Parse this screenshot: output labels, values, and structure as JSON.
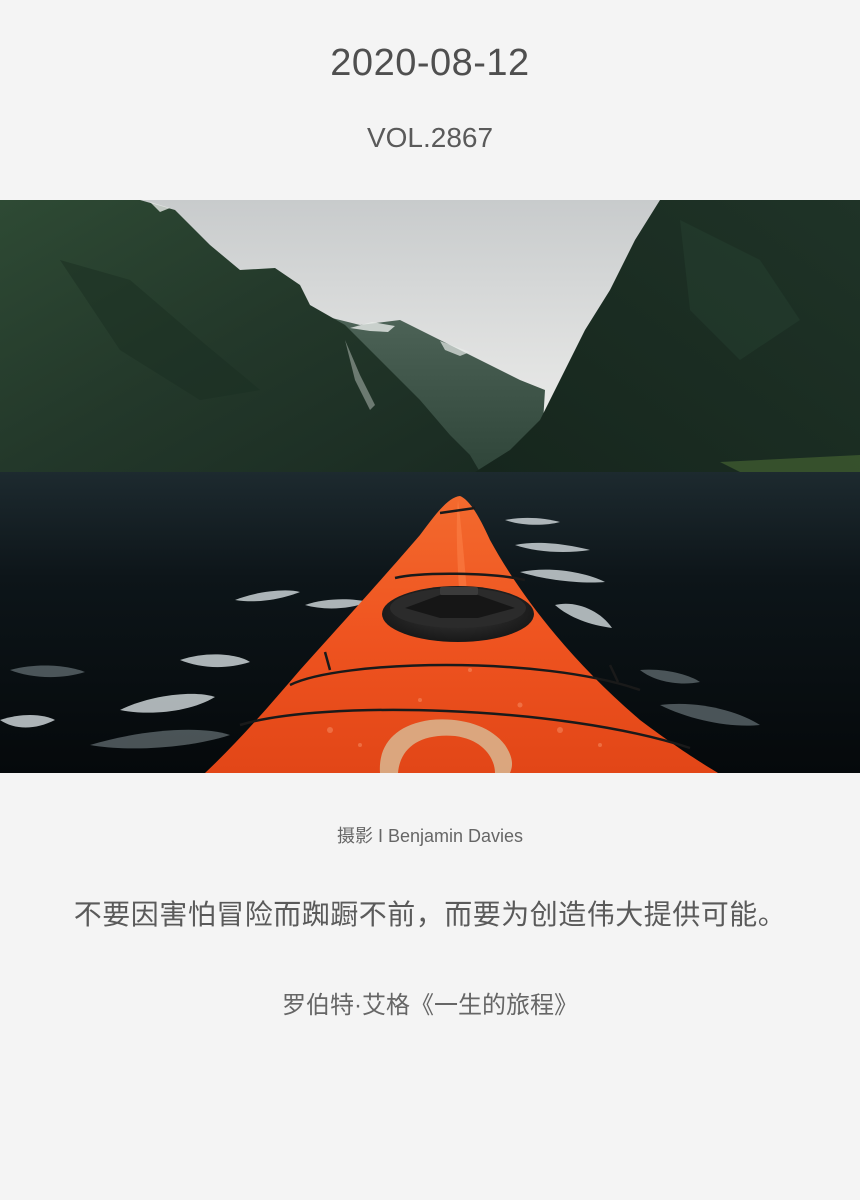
{
  "header": {
    "date": "2020-08-12",
    "volume": "VOL.2867"
  },
  "photo": {
    "subject": "kayak-fjord-photo"
  },
  "credit": {
    "text": "摄影 I Benjamin Davies"
  },
  "quote": {
    "text": "不要因害怕冒险而踟蹰不前，而要为创造伟大提供可能。",
    "source": "罗伯特·艾格《一生的旅程》"
  },
  "colors": {
    "background": "#f4f4f4",
    "kayak": "#f0501e",
    "text": "#555555"
  }
}
